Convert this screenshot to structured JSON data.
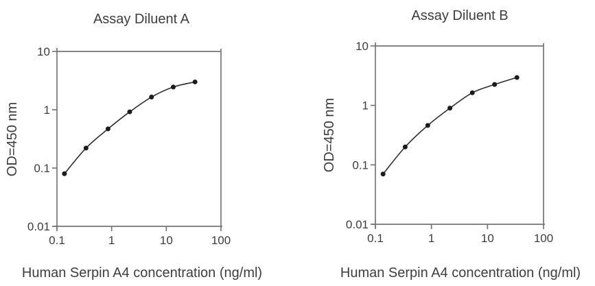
{
  "colors": {
    "axis": "#757575",
    "text": "#3d3d3d",
    "curve": "#2d2d2d",
    "marker": "#1c1c1c",
    "background": "#ffffff"
  },
  "chart_data": [
    {
      "type": "line",
      "title": "Assay Diluent A",
      "xlabel": "Human Serpin A4 concentration (ng/ml)",
      "ylabel": "OD=450 nm",
      "x_scale": "log",
      "y_scale": "log",
      "xlim": [
        0.1,
        100
      ],
      "ylim": [
        0.01,
        10
      ],
      "xticks": [
        "0.1",
        "1",
        "10",
        "100"
      ],
      "yticks": [
        "0.01",
        "0.1",
        "1",
        "10"
      ],
      "grid": false,
      "legend": "none",
      "marker": "filled-circle",
      "x": [
        0.137,
        0.34,
        0.86,
        2.14,
        5.36,
        13.4,
        33.5
      ],
      "y": [
        0.08,
        0.22,
        0.47,
        0.92,
        1.65,
        2.45,
        3.0
      ]
    },
    {
      "type": "line",
      "title": "Assay Diluent B",
      "xlabel": "Human Serpin A4 concentration (ng/ml)",
      "ylabel": "OD=450 nm",
      "x_scale": "log",
      "y_scale": "log",
      "xlim": [
        0.1,
        100
      ],
      "ylim": [
        0.01,
        10
      ],
      "xticks": [
        "0.1",
        "1",
        "10",
        "100"
      ],
      "yticks": [
        "0.01",
        "0.1",
        "1",
        "10"
      ],
      "grid": false,
      "legend": "none",
      "marker": "filled-circle",
      "x": [
        0.137,
        0.34,
        0.86,
        2.14,
        5.36,
        13.4,
        33.5
      ],
      "y": [
        0.07,
        0.2,
        0.46,
        0.9,
        1.63,
        2.25,
        2.95
      ]
    }
  ]
}
